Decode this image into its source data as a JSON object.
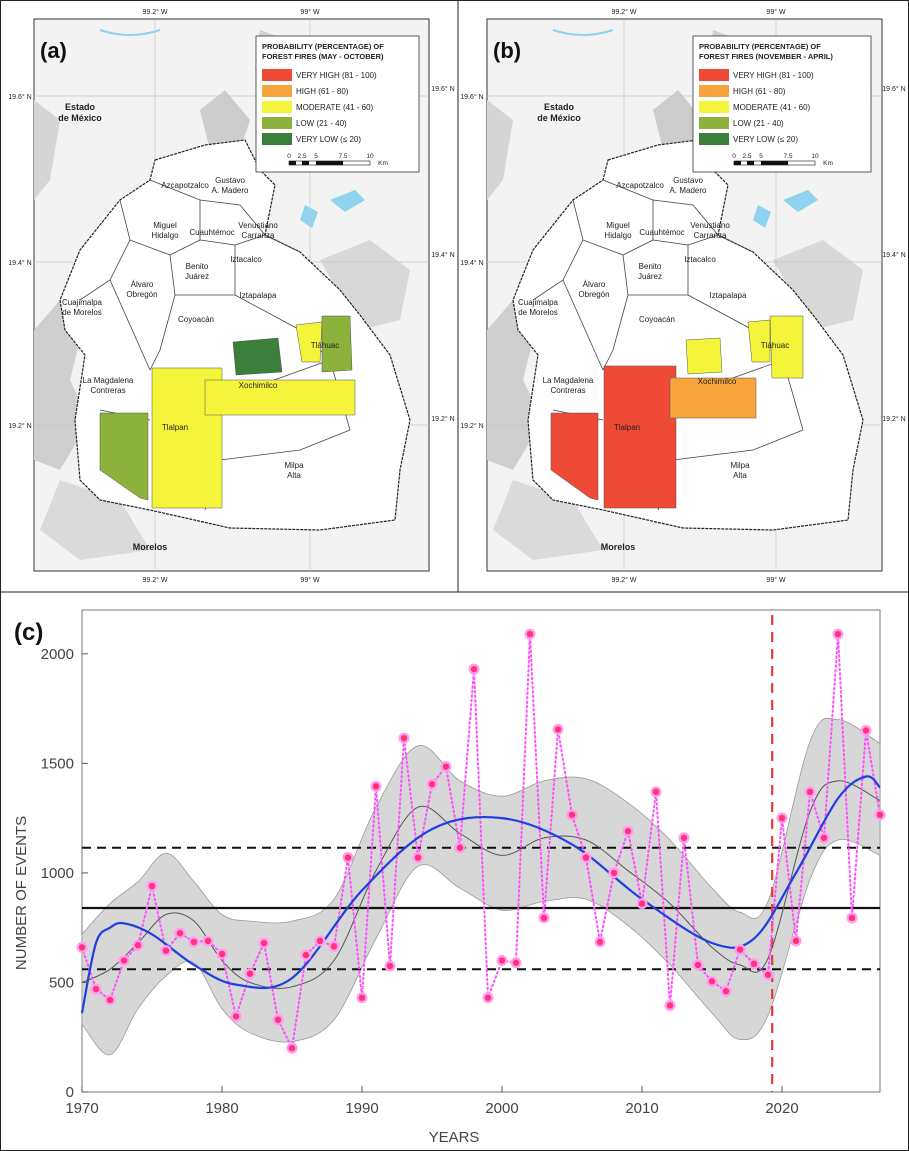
{
  "panels": {
    "a": {
      "label": "(a)",
      "legend_title_1": "PROBABILITY (PERCENTAGE) OF",
      "legend_title_2": "FOREST FIRES (MAY - OCTOBER)"
    },
    "b": {
      "label": "(b)",
      "legend_title_1": "PROBABILITY (PERCENTAGE) OF",
      "legend_title_2": "FOREST FIRES (NOVEMBER - APRIL)"
    },
    "c": {
      "label": "(c)"
    }
  },
  "legend": {
    "classes": [
      {
        "label": "VERY HIGH (81 - 100)",
        "color": "#ee4a36"
      },
      {
        "label": "HIGH (61 - 80)",
        "color": "#f6a43b"
      },
      {
        "label": "MODERATE (41 - 60)",
        "color": "#f4f43a"
      },
      {
        "label": "LOW (21 - 40)",
        "color": "#8db23b"
      },
      {
        "label": "VERY LOW (≤ 20)",
        "color": "#3c7f3c"
      }
    ],
    "scale_ticks": [
      "0",
      "2.5",
      "5",
      "7.5",
      "10"
    ],
    "scale_unit": "Km"
  },
  "map": {
    "lon_labels": {
      "top_left": "99.2° W",
      "top_right": "99° W",
      "bottom_left": "99.2° W",
      "bottom_right": "99° W"
    },
    "lat_labels": {
      "top": "19.6° N",
      "mid": "19.4° N",
      "bottom": "19.2° N"
    },
    "regions": {
      "estado_1": "Estado",
      "estado_2": "de México",
      "morelos": "Morelos",
      "azcapotzalco": "Azcapotzalco",
      "gustavo_1": "Gustavo",
      "gustavo_2": "A. Madero",
      "miguel_1": "Miguel",
      "miguel_2": "Hidalgo",
      "cuauhtemoc": "Cuauhtémoc",
      "venustiano_1": "Venustiano",
      "venustiano_2": "Carranza",
      "iztacalco": "Iztacalco",
      "benito_1": "Benito",
      "benito_2": "Juárez",
      "alvaro_1": "Álvaro",
      "alvaro_2": "Obregón",
      "cuajimalpa_1": "Cuajimalpa",
      "cuajimalpa_2": "de Morelos",
      "iztapalapa": "Iztapalapa",
      "coyoacan": "Coyoacán",
      "tlahuac": "Tláhuac",
      "magdalena_1": "La Magdalena",
      "magdalena_2": "Contreras",
      "xochimilco": "Xochimilco",
      "tlalpan": "Tlalpan",
      "milpa_1": "Milpa",
      "milpa_2": "Alta"
    },
    "panel_a_fills": {
      "magdalena": "#8db23b",
      "tlalpan": "#f4f43a",
      "xochimilco": "#f4f43a",
      "xochimilco_north": "#3c7f3c",
      "tlahuac": "#f4f43a",
      "tlahuac_east": "#8db23b"
    },
    "panel_b_fills": {
      "magdalena": "#ee4a36",
      "tlalpan": "#ee4a36",
      "xochimilco": "#f6a43b",
      "xochimilco_north": "#f4f43a",
      "tlahuac": "#f4f43a",
      "tlahuac_east": "#f4f43a"
    }
  },
  "chart_data": {
    "type": "line",
    "title": "",
    "xlabel": "YEARS",
    "ylabel": "NUMBER OF EVENTS",
    "xlim": [
      1970,
      2027
    ],
    "ylim": [
      0,
      2200
    ],
    "x_ticks": [
      1970,
      1980,
      1990,
      2000,
      2010,
      2020
    ],
    "y_ticks": [
      0,
      500,
      1000,
      1500,
      2000
    ],
    "grid": false,
    "reference_lines": {
      "mean": 840,
      "upper": 1115,
      "lower": 560,
      "vertical_year": 2019.3
    },
    "series": [
      {
        "values_x": [
          1970,
          1971,
          1972,
          1973,
          1974,
          1975,
          1976,
          1977,
          1978,
          1979,
          1980,
          1981,
          1982,
          1983,
          1984,
          1985,
          1986,
          1987,
          1988,
          1989,
          1990,
          1991,
          1992,
          1993,
          1994,
          1995,
          1996,
          1997,
          1998,
          1999,
          2000,
          2001,
          2002,
          2003,
          2004,
          2005,
          2006,
          2007,
          2008,
          2009,
          2010,
          2011,
          2012,
          2013,
          2014,
          2015,
          2016,
          2017,
          2018,
          2019,
          2020,
          2021,
          2022,
          2023,
          2024,
          2025,
          2026,
          2027
        ],
        "values_y": [
          660,
          470,
          420,
          600,
          670,
          940,
          645,
          725,
          685,
          690,
          630,
          345,
          540,
          680,
          330,
          200,
          625,
          690,
          665,
          1070,
          430,
          1395,
          575,
          1615,
          1070,
          1405,
          1485,
          1115,
          1930,
          430,
          600,
          590,
          2090,
          795,
          1655,
          1265,
          1070,
          685,
          1000,
          1190,
          860,
          1370,
          395,
          1160,
          580,
          505,
          460,
          650,
          585,
          535,
          1250,
          690,
          1370,
          1160,
          2090,
          795,
          1650,
          1265
        ],
        "color": "#ff4fff",
        "marker_color": "#ff3377"
      },
      {
        "values_x": [
          1970,
          1971,
          1972,
          1973,
          1975,
          1978,
          1981,
          1985,
          1990,
          1995,
          2000,
          2005,
          2010,
          2015,
          2018,
          2021,
          2024,
          2026,
          2027
        ],
        "values_y": [
          360,
          680,
          750,
          770,
          720,
          580,
          490,
          520,
          920,
          1200,
          1250,
          1130,
          880,
          680,
          700,
          1000,
          1340,
          1440,
          1390
        ],
        "color": "#1f3fe0"
      },
      {
        "values_x": [
          1970,
          1972,
          1974,
          1976,
          1978,
          1980,
          1982,
          1985,
          1988,
          1991,
          1994,
          1997,
          2000,
          2003,
          2006,
          2009,
          2012,
          2015,
          2017,
          2019,
          2022,
          2024,
          2027
        ],
        "values_y": [
          500,
          560,
          680,
          810,
          780,
          600,
          500,
          480,
          600,
          1010,
          1300,
          1180,
          1080,
          1160,
          1150,
          1010,
          860,
          660,
          580,
          610,
          1280,
          1420,
          1330
        ],
        "color": "#555555"
      }
    ],
    "confidence_band": {
      "x": [
        1970,
        1972,
        1974,
        1976,
        1978,
        1980,
        1982,
        1985,
        1988,
        1991,
        1994,
        1997,
        2000,
        2003,
        2006,
        2009,
        2012,
        2015,
        2017,
        2019,
        2022,
        2024,
        2027
      ],
      "upper": [
        720,
        860,
        960,
        1090,
        960,
        810,
        780,
        780,
        880,
        1300,
        1580,
        1420,
        1350,
        1420,
        1430,
        1320,
        1150,
        930,
        820,
        870,
        1600,
        1700,
        1590
      ],
      "lower": [
        310,
        170,
        380,
        530,
        590,
        380,
        270,
        230,
        330,
        700,
        1030,
        930,
        830,
        870,
        880,
        760,
        580,
        360,
        240,
        350,
        970,
        1150,
        1080
      ],
      "color": "#d7d7d7"
    }
  }
}
